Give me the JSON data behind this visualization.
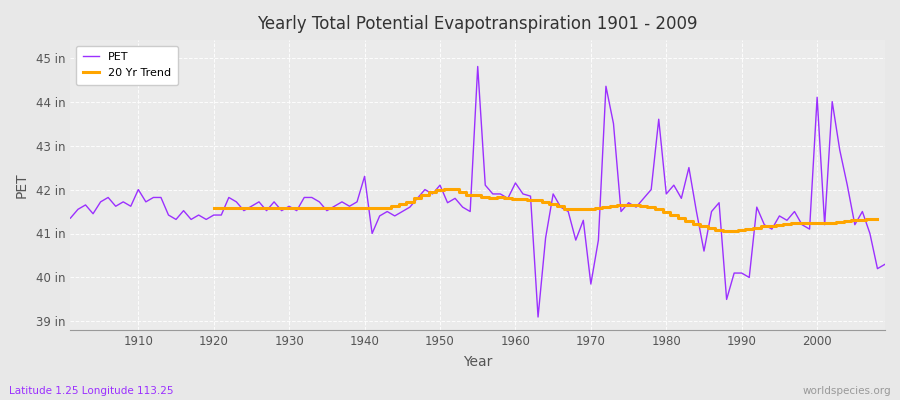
{
  "title": "Yearly Total Potential Evapotranspiration 1901 - 2009",
  "xlabel": "Year",
  "ylabel": "PET",
  "footnote_left": "Latitude 1.25 Longitude 113.25",
  "footnote_right": "worldspecies.org",
  "pet_color": "#9B30FF",
  "trend_color": "#FFA500",
  "bg_color": "#E8E8E8",
  "plot_bg_color": "#EBEBEB",
  "ylim": [
    38.8,
    45.4
  ],
  "yticks": [
    39,
    40,
    41,
    42,
    43,
    44,
    45
  ],
  "ytick_labels": [
    "39 in",
    "40 in",
    "41 in",
    "42 in",
    "43 in",
    "44 in",
    "45 in"
  ],
  "years": [
    1901,
    1902,
    1903,
    1904,
    1905,
    1906,
    1907,
    1908,
    1909,
    1910,
    1911,
    1912,
    1913,
    1914,
    1915,
    1916,
    1917,
    1918,
    1919,
    1920,
    1921,
    1922,
    1923,
    1924,
    1925,
    1926,
    1927,
    1928,
    1929,
    1930,
    1931,
    1932,
    1933,
    1934,
    1935,
    1936,
    1937,
    1938,
    1939,
    1940,
    1941,
    1942,
    1943,
    1944,
    1945,
    1946,
    1947,
    1948,
    1949,
    1950,
    1951,
    1952,
    1953,
    1954,
    1955,
    1956,
    1957,
    1958,
    1959,
    1960,
    1961,
    1962,
    1963,
    1964,
    1965,
    1966,
    1967,
    1968,
    1969,
    1970,
    1971,
    1972,
    1973,
    1974,
    1975,
    1976,
    1977,
    1978,
    1979,
    1980,
    1981,
    1982,
    1983,
    1984,
    1985,
    1986,
    1987,
    1988,
    1989,
    1990,
    1991,
    1992,
    1993,
    1994,
    1995,
    1996,
    1997,
    1998,
    1999,
    2000,
    2001,
    2002,
    2003,
    2004,
    2005,
    2006,
    2007,
    2008,
    2009
  ],
  "pet_values": [
    41.35,
    41.55,
    41.65,
    41.45,
    41.72,
    41.82,
    41.62,
    41.72,
    41.62,
    42.0,
    41.72,
    41.82,
    41.82,
    41.42,
    41.32,
    41.52,
    41.32,
    41.42,
    41.32,
    41.42,
    41.42,
    41.82,
    41.72,
    41.52,
    41.62,
    41.72,
    41.52,
    41.72,
    41.52,
    41.62,
    41.52,
    41.82,
    41.82,
    41.72,
    41.52,
    41.62,
    41.72,
    41.62,
    41.72,
    42.3,
    41.0,
    41.4,
    41.5,
    41.4,
    41.5,
    41.6,
    41.8,
    42.0,
    41.9,
    42.1,
    41.7,
    41.8,
    41.6,
    41.5,
    44.8,
    42.1,
    41.9,
    41.9,
    41.8,
    42.15,
    41.9,
    41.85,
    39.1,
    40.9,
    41.9,
    41.6,
    41.5,
    40.85,
    41.3,
    39.85,
    40.85,
    44.35,
    43.5,
    41.5,
    41.7,
    41.6,
    41.8,
    42.0,
    43.6,
    41.9,
    42.1,
    41.8,
    42.5,
    41.5,
    40.6,
    41.5,
    41.7,
    39.5,
    40.1,
    40.1,
    40.0,
    41.6,
    41.2,
    41.1,
    41.4,
    41.3,
    41.5,
    41.2,
    41.1,
    44.1,
    41.2,
    44.0,
    42.9,
    42.1,
    41.2,
    41.5,
    41.0,
    40.2,
    40.3
  ],
  "trend_values": [
    null,
    null,
    null,
    null,
    null,
    null,
    null,
    null,
    null,
    null,
    null,
    null,
    null,
    null,
    null,
    null,
    null,
    null,
    null,
    41.57,
    41.57,
    41.57,
    41.57,
    41.57,
    41.57,
    41.57,
    41.57,
    41.57,
    41.57,
    41.57,
    41.57,
    41.57,
    41.57,
    41.57,
    41.57,
    41.57,
    41.57,
    41.57,
    41.57,
    41.57,
    41.57,
    41.58,
    41.58,
    41.62,
    41.68,
    41.72,
    41.8,
    41.88,
    41.95,
    42.0,
    42.02,
    42.01,
    41.95,
    41.88,
    41.87,
    41.83,
    41.8,
    41.82,
    41.8,
    41.78,
    41.78,
    41.77,
    41.76,
    41.72,
    41.67,
    41.62,
    41.56,
    41.56,
    41.56,
    41.56,
    41.58,
    41.6,
    41.62,
    41.64,
    41.64,
    41.64,
    41.62,
    41.6,
    41.55,
    41.48,
    41.42,
    41.35,
    41.28,
    41.22,
    41.17,
    41.12,
    41.08,
    41.05,
    41.05,
    41.07,
    41.1,
    41.13,
    41.16,
    41.18,
    41.2,
    41.22,
    41.23,
    41.23,
    41.23,
    41.23,
    41.24,
    41.25,
    41.27,
    41.29,
    41.3,
    41.31,
    41.32,
    41.33
  ]
}
